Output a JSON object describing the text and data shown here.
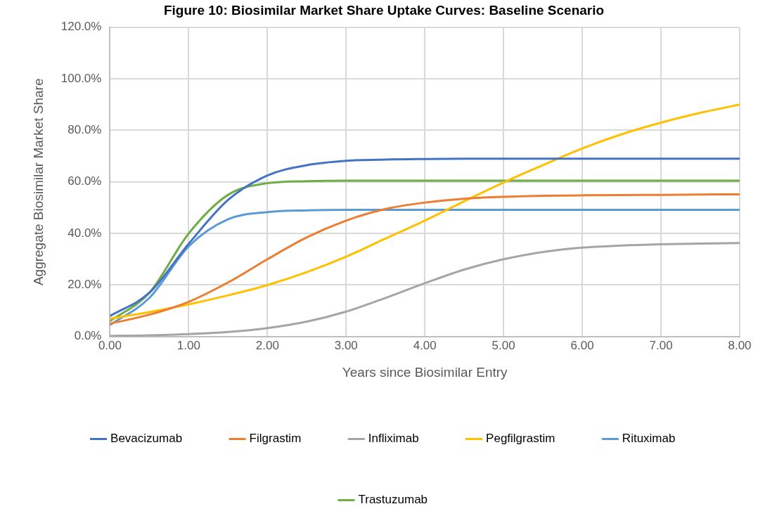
{
  "chart_data": {
    "type": "line",
    "title": "Figure 10: Biosimilar Market Share Uptake Curves: Baseline Scenario",
    "xlabel": "Years since Biosimilar Entry",
    "ylabel": "Aggregate Biosimilar Market Share",
    "x": [
      0,
      0.5,
      1,
      1.5,
      2,
      2.5,
      3,
      3.5,
      4,
      4.5,
      5,
      5.5,
      6,
      6.5,
      7,
      7.5,
      8
    ],
    "series": [
      {
        "name": "Bevacizumab",
        "color": "#4472c4",
        "values": [
          8,
          17,
          36,
          53,
          62.5,
          66.5,
          68.2,
          68.7,
          68.9,
          69,
          69,
          69,
          69,
          69,
          69,
          69,
          69
        ]
      },
      {
        "name": "Filgrastim",
        "color": "#ed7d31",
        "values": [
          5,
          8.5,
          13.5,
          21,
          30,
          38.5,
          45,
          49.5,
          52,
          53.5,
          54.2,
          54.6,
          54.8,
          54.9,
          55,
          55.1,
          55.2
        ]
      },
      {
        "name": "Infliximab",
        "color": "#a5a5a5",
        "values": [
          0.3,
          0.5,
          1,
          1.8,
          3.3,
          5.8,
          9.7,
          15,
          20.7,
          26,
          30,
          32.8,
          34.5,
          35.3,
          35.8,
          36.1,
          36.3
        ]
      },
      {
        "name": "Pegfilgrastim",
        "color": "#ffc000",
        "values": [
          7,
          9.5,
          12.5,
          16,
          20,
          25,
          31,
          38,
          45,
          52.5,
          59.8,
          66.5,
          73,
          78.5,
          83,
          86.8,
          90
        ]
      },
      {
        "name": "Rituximab",
        "color": "#5b9bd5",
        "values": [
          4.5,
          15,
          35,
          45.5,
          48.3,
          49,
          49.2,
          49.2,
          49.2,
          49.2,
          49.2,
          49.2,
          49.2,
          49.2,
          49.2,
          49.2,
          49.2
        ]
      },
      {
        "name": "Trastuzumab",
        "color": "#70ad47",
        "values": [
          6,
          17,
          40,
          55,
          59.5,
          60.3,
          60.5,
          60.5,
          60.5,
          60.5,
          60.5,
          60.5,
          60.5,
          60.5,
          60.5,
          60.5,
          60.5
        ]
      }
    ],
    "xlim": [
      0,
      8
    ],
    "xticks": [
      {
        "value": 0,
        "label": "0.00"
      },
      {
        "value": 1,
        "label": "1.00"
      },
      {
        "value": 2,
        "label": "2.00"
      },
      {
        "value": 3,
        "label": "3.00"
      },
      {
        "value": 4,
        "label": "4.00"
      },
      {
        "value": 5,
        "label": "5.00"
      },
      {
        "value": 6,
        "label": "6.00"
      },
      {
        "value": 7,
        "label": "7.00"
      },
      {
        "value": 8,
        "label": "8.00"
      }
    ],
    "ylim": [
      0,
      120
    ],
    "yticks": [
      {
        "value": 0,
        "label": "0.0%"
      },
      {
        "value": 20,
        "label": "20.0%"
      },
      {
        "value": 40,
        "label": "40.0%"
      },
      {
        "value": 60,
        "label": "60.0%"
      },
      {
        "value": 80,
        "label": "80.0%"
      },
      {
        "value": 100,
        "label": "100.0%"
      },
      {
        "value": 120,
        "label": "120.0%"
      }
    ],
    "grid": true,
    "legend": "bottom",
    "marker": "none",
    "line_style": "solid"
  }
}
